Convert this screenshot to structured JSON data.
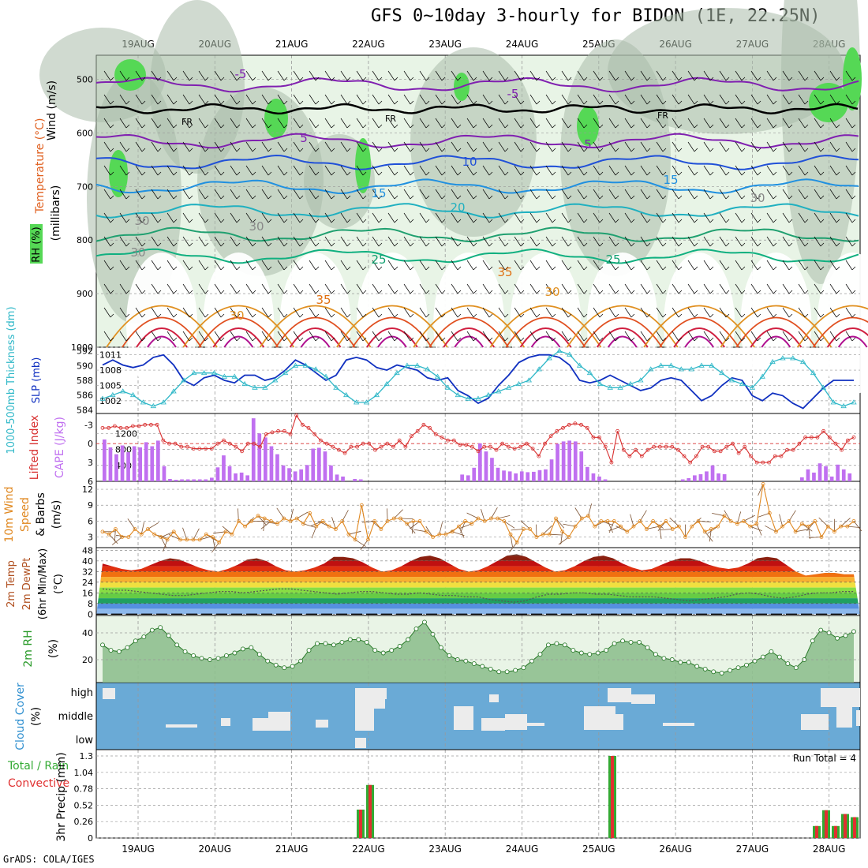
{
  "title": "GFS 0~10day 3-hourly for BIDON (1E, 22.25N)",
  "credit": "GrADS: COLA/IGES",
  "dates": [
    "19AUG",
    "20AUG",
    "21AUG",
    "22AUG",
    "23AUG",
    "24AUG",
    "25AUG",
    "26AUG",
    "27AUG",
    "28AUG"
  ],
  "colors": {
    "grid": "#999999",
    "cloud": "#6aaad6",
    "rh_fill": "#8fc08f",
    "precip_total": "#33aa33",
    "precip_conv": "#e03030",
    "slp": "#1030c0",
    "thickness": "#30b8c8",
    "li": "#d83030",
    "cape": "#c070f0",
    "wind": "#e08820"
  },
  "panels": {
    "upper": {
      "ylabels": [
        "Wind (m/s)",
        "Temperature (°C)",
        "RH (%)",
        "(millibars)"
      ],
      "levels": [
        "500",
        "600",
        "700",
        "800",
        "900",
        "1000"
      ],
      "contour_labels": [
        "FR",
        "FR",
        "FR",
        "-5",
        "-5",
        "5",
        "5",
        "10",
        "15",
        "15",
        "20",
        "25",
        "25",
        "30",
        "30",
        "35",
        "35",
        "30",
        "30",
        "30",
        "30"
      ]
    },
    "slp": {
      "ylabel_left": "1000-500mb Thickness (dm)",
      "ylabel_right": "SLP (mb)",
      "ticks_left": [
        "592",
        "590",
        "588",
        "586",
        "584"
      ],
      "ticks_right": [
        "1011",
        "1008",
        "1005",
        "1002"
      ]
    },
    "li": {
      "ylabel_left": "Lifted Index",
      "ylabel_right": "CAPE (J/kg)",
      "ticks_left": [
        "-3",
        "0",
        "3",
        "6"
      ],
      "ticks_right": [
        "1200",
        "800",
        "400"
      ]
    },
    "wind": {
      "ylabel": [
        "10m Wind",
        "Speed",
        "& Barbs",
        "(m/s)"
      ],
      "ticks": [
        "12",
        "9",
        "6",
        "3"
      ]
    },
    "temp": {
      "ylabel": [
        "2m Temp",
        "2m DewPt",
        "(6hr Min/Max)",
        "(°C)"
      ],
      "ticks": [
        "48",
        "40",
        "32",
        "24",
        "16",
        "8",
        "0"
      ]
    },
    "rh": {
      "ylabel": [
        "2m RH",
        "(%)"
      ],
      "ticks": [
        "40",
        "20"
      ]
    },
    "cloud": {
      "ylabel": [
        "Cloud Cover",
        "(%)"
      ],
      "levels": [
        "high",
        "middle",
        "low"
      ]
    },
    "precip": {
      "ylabel_left": [
        "Total / Rain",
        "Convective"
      ],
      "ylabel": "3hr Precip (mm)",
      "ticks": [
        "1.3",
        "1.04",
        "0.78",
        "0.52",
        "0.26",
        "0"
      ],
      "run_total": "Run Total = 4"
    }
  },
  "chart_data": [
    {
      "type": "line",
      "title": "SLP / 1000-500mb Thickness",
      "xlabel": "",
      "series": [
        {
          "name": "SLP (mb)",
          "values": [
            1009,
            1010,
            1009,
            1008.5,
            1009,
            1010.5,
            1011,
            1009,
            1006,
            1005,
            1006.5,
            1007,
            1006,
            1005.5,
            1007,
            1007,
            1006,
            1006.5,
            1008,
            1010,
            1009,
            1007.5,
            1006,
            1007,
            1010,
            1010.5,
            1010,
            1008.5,
            1008,
            1009,
            1008.5,
            1008,
            1006.5,
            1006,
            1006.5,
            1004,
            1003,
            1001.5,
            1002.5,
            1005,
            1007,
            1009.5,
            1010.5,
            1011,
            1011,
            1010.5,
            1009,
            1006,
            1005.5,
            1006,
            1007,
            1006,
            1005,
            1004,
            1004.5,
            1006,
            1006.5,
            1006,
            1004,
            1002,
            1003,
            1005,
            1006.5,
            1006,
            1003,
            1002,
            1003.5,
            1003,
            1001.5,
            1000.5,
            1002.5,
            1004.5,
            1006,
            1006,
            1006
          ]
        },
        {
          "name": "1000-500mb Thickness (dm)",
          "values": [
            585.5,
            586,
            586.5,
            586,
            585,
            584.5,
            585,
            586.5,
            588,
            589,
            589,
            589,
            588.5,
            588.5,
            587.5,
            587,
            587,
            588,
            589,
            590,
            590,
            589.5,
            588.5,
            587,
            586,
            585,
            585,
            586,
            587.5,
            589,
            590,
            590,
            589.5,
            588.5,
            587,
            586,
            585.5,
            585.5,
            586,
            586.5,
            587,
            587.5,
            588,
            589.5,
            591,
            592,
            591.5,
            590,
            589,
            587.5,
            587,
            587,
            587.5,
            588,
            589.5,
            590,
            590,
            589.5,
            589.5,
            590,
            590,
            589,
            588,
            587.5,
            587,
            588.5,
            590.5,
            591,
            591,
            590.5,
            589,
            587,
            585,
            584.5,
            585
          ]
        }
      ]
    },
    {
      "type": "bar",
      "title": "Lifted Index / CAPE",
      "xlabel": "",
      "series": [
        {
          "name": "CAPE (J/kg)",
          "values": [
            1050,
            850,
            680,
            900,
            730,
            880,
            850,
            980,
            880,
            1020,
            380,
            60,
            40,
            50,
            50,
            50,
            50,
            50,
            90,
            350,
            650,
            380,
            200,
            220,
            150,
            1580,
            1200,
            1100,
            880,
            680,
            400,
            330,
            250,
            300,
            410,
            820,
            840,
            750,
            400,
            170,
            120,
            0,
            60,
            50,
            0,
            0,
            0,
            0,
            0,
            0,
            0,
            0,
            0,
            0,
            0,
            0,
            0,
            0,
            0,
            0,
            170,
            150,
            340,
            950,
            750,
            590,
            340,
            270,
            250,
            200,
            250,
            230,
            240,
            280,
            300,
            550,
            940,
            1000,
            1020,
            1000,
            750,
            360,
            200,
            120,
            50,
            0,
            0,
            0,
            0,
            0,
            0,
            0,
            0,
            0,
            0,
            0,
            0,
            50,
            80,
            150,
            180,
            250,
            400,
            200,
            180,
            0,
            0,
            0,
            0,
            0,
            0,
            0,
            0,
            0,
            0,
            0,
            0,
            100,
            300,
            220,
            450,
            380,
            120,
            420,
            300,
            200
          ]
        },
        {
          "name": "Lifted Index",
          "values": [
            -2.5,
            -2.5,
            -2.8,
            -2.5,
            -2.5,
            -2.8,
            -2.8,
            -3,
            -3,
            -3,
            -0.5,
            0,
            0,
            0.5,
            0.5,
            0.8,
            0.8,
            0.8,
            0.8,
            0,
            -0.5,
            0,
            0.5,
            1.2,
            0,
            0,
            0.5,
            -1.5,
            -1.8,
            -2,
            -2,
            -1.5,
            -4.5,
            -3,
            -2.5,
            -1.5,
            -0.5,
            0,
            0.5,
            1,
            1.5,
            0.5,
            0.5,
            0,
            0,
            1,
            0.5,
            0,
            0.5,
            -0.5,
            0.5,
            -1.2,
            -2,
            -3,
            -2.5,
            -1.5,
            -1,
            -0.5,
            -0.5,
            0.2,
            0.2,
            0.5,
            1.2,
            0.5,
            0.5,
            1,
            0,
            0.5,
            0.8,
            0.5,
            0,
            0.8,
            2,
            0,
            -1.2,
            -2,
            -2.5,
            -3,
            -3.2,
            -3,
            -2.5,
            -1,
            -1,
            0.5,
            3,
            -2,
            1,
            2,
            1,
            2,
            1,
            0.5,
            0.5,
            0.5,
            0.5,
            1,
            2,
            3,
            2,
            0.5,
            0.5,
            1.2,
            1.2,
            0.5,
            0,
            1.5,
            0.5,
            2,
            3,
            3,
            3,
            2,
            2,
            1,
            1,
            0,
            -1,
            -1,
            -1,
            -2,
            -1,
            0,
            1,
            -0.5,
            -1
          ]
        }
      ]
    },
    {
      "type": "line",
      "title": "10m Wind Speed",
      "xlabel": "",
      "ylabel": "(m/s)",
      "series": [
        {
          "name": "Speed",
          "values": [
            4,
            3.5,
            4.5,
            3,
            3,
            4.5,
            3.5,
            4.5,
            3.5,
            3,
            2.5,
            4,
            2.5,
            2.5,
            2.5,
            2.5,
            3.5,
            3,
            2,
            4,
            3.5,
            6,
            5,
            6,
            7,
            6.5,
            6,
            5.5,
            6.5,
            6,
            6.5,
            5.5,
            7.5,
            5,
            6,
            5,
            4.5,
            6,
            3.5,
            2.5,
            9,
            2.5,
            6,
            4.5,
            6,
            6.5,
            6.5,
            5.5,
            6,
            6,
            4,
            3,
            3.5,
            3.5,
            4,
            5,
            6,
            5.5,
            6.5,
            6,
            6.5,
            6.5,
            6,
            3.5,
            2,
            4.5,
            4.5,
            3,
            3.5,
            3.5,
            6.5,
            4,
            3,
            5,
            6.5,
            7,
            5,
            6,
            6,
            6,
            5,
            4,
            5,
            6,
            4.5,
            6,
            5,
            6,
            4.5,
            5,
            3,
            5,
            6,
            4,
            4.5,
            5,
            7,
            6,
            5.5,
            6,
            5,
            5.5,
            13,
            7.5,
            4,
            5,
            6,
            4,
            5.5,
            5,
            6,
            3,
            5,
            4,
            5,
            5,
            6
          ]
        }
      ]
    },
    {
      "type": "area",
      "title": "2m Temp / 2m DewPt (6hr Min/Max)",
      "xlabel": "",
      "ylabel": "(°C)",
      "series": [
        {
          "name": "2m Temp",
          "values": [
            38,
            36,
            34,
            33,
            34,
            37,
            40,
            42,
            41,
            38,
            35,
            33,
            32,
            34,
            37,
            41,
            42,
            40,
            36,
            33,
            32,
            33,
            35,
            38,
            43,
            43,
            42,
            39,
            35,
            32,
            33,
            36,
            40,
            43,
            44,
            42,
            38,
            34,
            32,
            33,
            36,
            40,
            44,
            45,
            43,
            39,
            35,
            32,
            33,
            36,
            40,
            43,
            44,
            42,
            38,
            35,
            33,
            34,
            37,
            40,
            42,
            42,
            40,
            37,
            35,
            34,
            35,
            38,
            42,
            43,
            42,
            37,
            32,
            29,
            30,
            31,
            31,
            30,
            30
          ]
        },
        {
          "name": "2m DewPt",
          "values": [
            19,
            18,
            18,
            17,
            16,
            15,
            14,
            14,
            15,
            16,
            17,
            17,
            16,
            17,
            18,
            19,
            19,
            18,
            17,
            16,
            15,
            16,
            17,
            17,
            16,
            15,
            15,
            16,
            15,
            14,
            14,
            13,
            13,
            11,
            10,
            9,
            10,
            13,
            15,
            15,
            16,
            16,
            15,
            15,
            14,
            13,
            13,
            13,
            12,
            11,
            10,
            11,
            12,
            13,
            15,
            16,
            15,
            13,
            12,
            13,
            15,
            16,
            16,
            17,
            17
          ]
        }
      ]
    },
    {
      "type": "area",
      "title": "2m RH",
      "xlabel": "",
      "ylabel": "(%)",
      "series": [
        {
          "name": "2m RH",
          "values": [
            31,
            27,
            26,
            29,
            34,
            37,
            42,
            44,
            38,
            31,
            26,
            23,
            21,
            20,
            21,
            23,
            25,
            28,
            29,
            24,
            19,
            16,
            14,
            15,
            19,
            27,
            32,
            32,
            31,
            33,
            35,
            35,
            33,
            27,
            25,
            27,
            30,
            35,
            43,
            48,
            39,
            29,
            23,
            20,
            19,
            17,
            15,
            13,
            11,
            11,
            12,
            14,
            19,
            24,
            31,
            32,
            31,
            27,
            25,
            24,
            25,
            27,
            32,
            34,
            33,
            33,
            29,
            24,
            21,
            20,
            18,
            18,
            15,
            13,
            11,
            10,
            12,
            14,
            16,
            19,
            22,
            26,
            22,
            17,
            14,
            20,
            34,
            42,
            40,
            36,
            38,
            41
          ]
        }
      ]
    },
    {
      "type": "heatmap",
      "title": "Cloud Cover",
      "xlabel": "",
      "ylabel": "(%)",
      "categories": [
        "high",
        "middle",
        "low"
      ]
    },
    {
      "type": "bar",
      "title": "3hr Precip",
      "xlabel": "",
      "ylabel": "3hr Precip (mm)",
      "ylim": [
        0,
        1.3
      ],
      "series": [
        {
          "name": "Total / Rain",
          "values": [
            {
              "x": "21AUG 21Z",
              "y": 0.45
            },
            {
              "x": "22AUG 00Z",
              "y": 0.84
            },
            {
              "x": "25AUG 00Z",
              "y": 1.3
            },
            {
              "x": "27AUG 21Z",
              "y": 0.19
            },
            {
              "x": "28AUG 00Z",
              "y": 0.44
            },
            {
              "x": "28AUG 03Z",
              "y": 0.19
            },
            {
              "x": "28AUG 06Z",
              "y": 0.38
            },
            {
              "x": "28AUG 09Z",
              "y": 0.33
            }
          ]
        },
        {
          "name": "Convective",
          "values": [
            {
              "x": "21AUG 21Z",
              "y": 0.45
            },
            {
              "x": "22AUG 00Z",
              "y": 0.84
            },
            {
              "x": "25AUG 00Z",
              "y": 1.3
            },
            {
              "x": "27AUG 21Z",
              "y": 0.19
            },
            {
              "x": "28AUG 00Z",
              "y": 0.44
            },
            {
              "x": "28AUG 03Z",
              "y": 0.19
            },
            {
              "x": "28AUG 06Z",
              "y": 0.38
            },
            {
              "x": "28AUG 09Z",
              "y": 0.33
            }
          ]
        }
      ]
    }
  ]
}
